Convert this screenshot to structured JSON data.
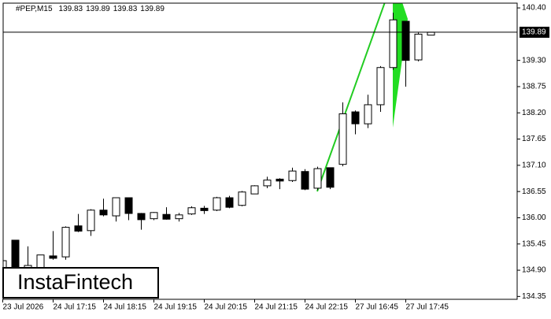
{
  "chart_data": {
    "type": "candlestick",
    "info_label": "#PEP,M15",
    "info_values": [
      139.83,
      139.89,
      139.83,
      139.89
    ],
    "categories": [
      "23 Jul 2026",
      null,
      null,
      null,
      "24 Jul 17:15",
      null,
      null,
      null,
      "24 Jul 18:15",
      null,
      null,
      null,
      "24 Jul 19:15",
      null,
      null,
      null,
      "24 Jul 20:15",
      null,
      null,
      null,
      "24 Jul 21:15",
      null,
      null,
      null,
      "24 Jul 22:15",
      null,
      null,
      null,
      "27 Jul 16:45",
      null,
      null,
      null,
      "27 Jul 17:45",
      null,
      null
    ],
    "open": [
      134.85,
      135.53,
      134.95,
      134.95,
      135.2,
      135.18,
      135.83,
      135.73,
      136.16,
      136.04,
      136.42,
      136.09,
      135.98,
      136.07,
      135.98,
      136.08,
      136.2,
      136.16,
      136.42,
      136.26,
      136.5,
      136.67,
      136.81,
      136.78,
      136.97,
      136.62,
      137.05,
      137.12,
      138.22,
      137.97,
      138.37,
      139.15,
      140.12,
      139.31,
      139.83
    ],
    "high": [
      135.2,
      135.53,
      135.4,
      135.22,
      135.72,
      135.82,
      136.08,
      136.18,
      136.4,
      136.42,
      136.42,
      136.1,
      136.12,
      136.22,
      136.1,
      136.24,
      136.25,
      136.44,
      136.46,
      136.56,
      136.68,
      136.86,
      136.83,
      137.05,
      137.02,
      137.07,
      137.05,
      138.42,
      138.25,
      138.58,
      139.18,
      140.3,
      140.12,
      139.88,
      139.89
    ],
    "low": [
      134.7,
      134.7,
      134.85,
      134.9,
      135.12,
      135.12,
      135.7,
      135.62,
      136.03,
      135.92,
      135.95,
      135.75,
      135.95,
      135.96,
      135.92,
      136.06,
      136.08,
      136.14,
      136.2,
      136.24,
      136.5,
      136.62,
      136.6,
      136.75,
      136.58,
      136.58,
      136.6,
      137.08,
      137.75,
      137.88,
      138.22,
      139.1,
      138.75,
      139.28,
      139.83
    ],
    "close": [
      135.1,
      134.85,
      135.0,
      135.22,
      135.15,
      135.8,
      135.72,
      136.16,
      136.06,
      136.42,
      136.09,
      135.96,
      136.11,
      135.97,
      136.06,
      136.21,
      136.15,
      136.42,
      136.22,
      136.54,
      136.67,
      136.79,
      136.77,
      136.98,
      136.6,
      137.03,
      136.64,
      138.18,
      137.97,
      138.37,
      139.15,
      140.15,
      139.3,
      139.85,
      139.89
    ],
    "price_line": 139.89,
    "ylim": [
      134.29,
      140.5
    ],
    "yticks": [
      {
        "value": 140.4,
        "label": "140.40"
      },
      {
        "value": 139.3,
        "label": "139.30"
      },
      138.75,
      {
        "value": 138.2,
        "label": "138.20"
      },
      137.65,
      {
        "value": 137.1,
        "label": "137.10"
      },
      136.55,
      {
        "value": 136.0,
        "label": "136.00"
      },
      135.45,
      {
        "value": 134.9,
        "label": "134.90"
      },
      134.35
    ],
    "logo": "InstaFintech"
  }
}
